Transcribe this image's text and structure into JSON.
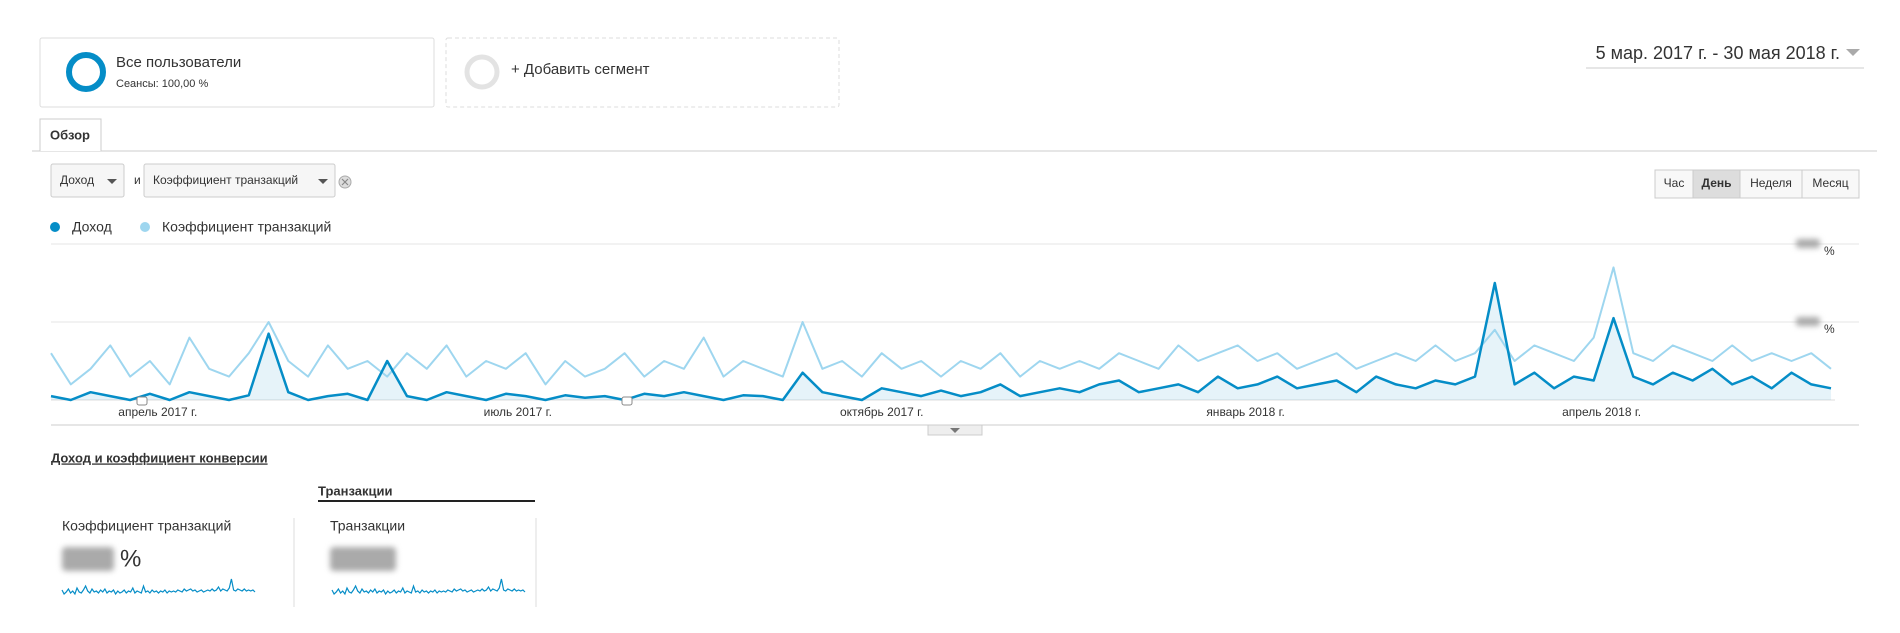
{
  "segments": [
    {
      "name": "Все пользователи",
      "detail": "Сеансы: 100,00 %"
    },
    {
      "name": "+ Добавить сегмент"
    }
  ],
  "date_range": "5 мар. 2017 г. - 30 мая 2018 г.",
  "tab": "Обзор",
  "metric_selector": {
    "primary": "Доход",
    "joiner": "и",
    "secondary": "Коэффициент транзакций"
  },
  "granularity": [
    "Час",
    "День",
    "Неделя",
    "Месяц"
  ],
  "selected_granularity": "День",
  "chart_data": {
    "type": "line",
    "x": [
      0,
      5,
      10,
      15,
      20,
      25,
      30,
      35,
      40,
      45,
      50,
      55,
      60,
      65,
      70,
      75,
      80,
      85,
      90,
      95,
      100,
      105,
      110,
      115,
      120,
      125,
      130,
      135,
      140,
      145,
      150,
      155,
      160,
      165,
      170,
      175,
      180,
      185,
      190,
      195,
      200,
      205,
      210,
      215,
      220,
      225,
      230,
      235,
      240,
      245,
      250,
      255,
      260,
      265,
      270,
      275,
      280,
      285,
      290,
      295,
      300,
      305,
      310,
      315,
      320,
      325,
      330,
      335,
      340,
      345,
      350,
      355,
      360,
      365,
      370,
      375,
      380,
      385,
      390,
      395,
      400,
      405,
      410,
      415,
      420,
      425,
      430,
      435,
      440,
      445,
      450
    ],
    "xlim": [
      0,
      451
    ],
    "xticks": [
      {
        "value": 27,
        "label": "апрель 2017 г."
      },
      {
        "value": 118,
        "label": "июль 2017 г."
      },
      {
        "value": 210,
        "label": "октябрь 2017 г."
      },
      {
        "value": 302,
        "label": "январь 2018 г."
      },
      {
        "value": 392,
        "label": "апрель 2018 г."
      }
    ],
    "ylim": [
      0,
      2
    ],
    "yticks": [
      1,
      2
    ],
    "y_unit": "%",
    "series": [
      {
        "name": "Доход",
        "color": "#058dc7",
        "values": [
          0.05,
          0.0,
          0.1,
          0.05,
          0.0,
          0.08,
          0.0,
          0.1,
          0.05,
          0.0,
          0.06,
          0.85,
          0.1,
          0.0,
          0.05,
          0.08,
          0.0,
          0.5,
          0.05,
          0.0,
          0.1,
          0.05,
          0.0,
          0.08,
          0.05,
          0.0,
          0.06,
          0.03,
          0.05,
          0.0,
          0.08,
          0.05,
          0.1,
          0.05,
          0.0,
          0.06,
          0.05,
          0.0,
          0.35,
          0.1,
          0.05,
          0.0,
          0.15,
          0.1,
          0.05,
          0.12,
          0.05,
          0.1,
          0.2,
          0.05,
          0.1,
          0.15,
          0.1,
          0.2,
          0.25,
          0.1,
          0.15,
          0.2,
          0.1,
          0.3,
          0.15,
          0.2,
          0.3,
          0.15,
          0.2,
          0.25,
          0.1,
          0.3,
          0.2,
          0.15,
          0.25,
          0.2,
          0.3,
          1.5,
          0.2,
          0.35,
          0.15,
          0.3,
          0.25,
          1.05,
          0.3,
          0.2,
          0.35,
          0.25,
          0.4,
          0.2,
          0.3,
          0.15,
          0.35,
          0.2,
          0.15
        ]
      },
      {
        "name": "Коэффициент транзакций",
        "color": "#9ed6ef",
        "values": [
          0.6,
          0.2,
          0.4,
          0.7,
          0.3,
          0.5,
          0.2,
          0.8,
          0.4,
          0.3,
          0.6,
          1.0,
          0.5,
          0.3,
          0.7,
          0.4,
          0.5,
          0.3,
          0.6,
          0.4,
          0.7,
          0.3,
          0.5,
          0.4,
          0.6,
          0.2,
          0.5,
          0.3,
          0.4,
          0.6,
          0.3,
          0.5,
          0.4,
          0.8,
          0.3,
          0.5,
          0.4,
          0.3,
          1.0,
          0.4,
          0.5,
          0.3,
          0.6,
          0.4,
          0.5,
          0.3,
          0.5,
          0.4,
          0.6,
          0.3,
          0.5,
          0.4,
          0.5,
          0.4,
          0.6,
          0.5,
          0.4,
          0.7,
          0.5,
          0.6,
          0.7,
          0.5,
          0.6,
          0.4,
          0.5,
          0.6,
          0.4,
          0.5,
          0.6,
          0.5,
          0.7,
          0.5,
          0.6,
          0.9,
          0.5,
          0.7,
          0.6,
          0.5,
          0.8,
          1.7,
          0.6,
          0.5,
          0.7,
          0.6,
          0.5,
          0.7,
          0.5,
          0.6,
          0.5,
          0.6,
          0.4
        ]
      }
    ]
  },
  "section_title": "Доход и коэффициент конверсии",
  "scorecard_tab": "Транзакции",
  "scorecards": [
    {
      "label": "Коэффициент транзакций",
      "unit": "%"
    },
    {
      "label": "Транзакции"
    }
  ]
}
